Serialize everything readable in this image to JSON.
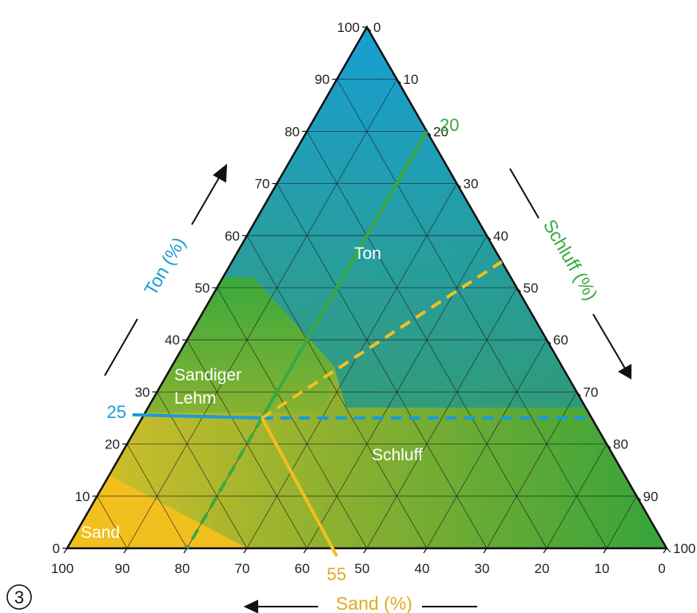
{
  "figure_label": "3",
  "colors": {
    "ton": "#1a9bd7",
    "schluff": "#3aa842",
    "sand": "#f2c01e",
    "outline": "#111111",
    "grid": "#1d1d1d"
  },
  "axes": {
    "ton": {
      "title": "Ton (%)",
      "ticks": [
        "0",
        "10",
        "20",
        "30",
        "40",
        "50",
        "60",
        "70",
        "80",
        "90",
        "100"
      ]
    },
    "schluff": {
      "title": "Schluff (%)",
      "ticks": [
        "0",
        "10",
        "20",
        "30",
        "40",
        "50",
        "60",
        "70",
        "80",
        "90",
        "100"
      ]
    },
    "sand": {
      "title": "Sand (%)",
      "ticks": [
        "100",
        "90",
        "80",
        "70",
        "60",
        "50",
        "40",
        "30",
        "20",
        "10",
        "0"
      ]
    }
  },
  "regions": {
    "ton": "Ton",
    "schluff": "Schluff",
    "sandiger_lehm_line1": "Sandiger",
    "sandiger_lehm_line2": "Lehm",
    "sand": "Sand"
  },
  "example": {
    "ton_value": 25,
    "schluff_value": 20,
    "sand_value": 55,
    "ton_label": "25",
    "schluff_label": "20",
    "sand_label": "55"
  }
}
